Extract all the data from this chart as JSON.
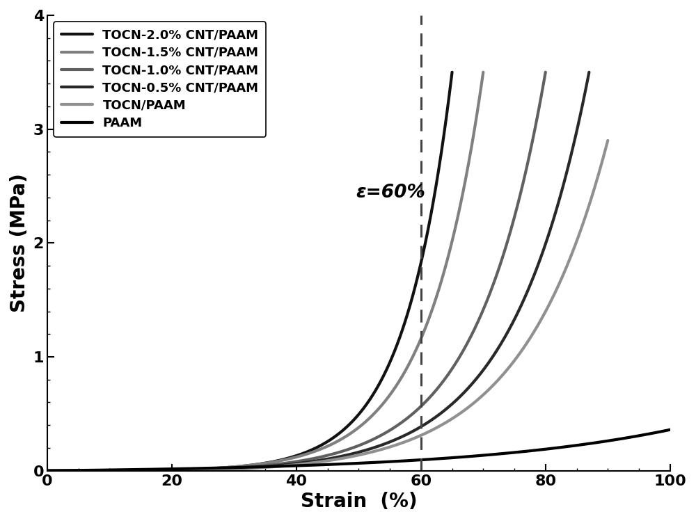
{
  "title": "",
  "xlabel": "Strain  (%)",
  "ylabel": "Stress (MPa)",
  "xlim": [
    0,
    100
  ],
  "ylim": [
    0,
    4
  ],
  "xticks": [
    0,
    20,
    40,
    60,
    80,
    100
  ],
  "yticks": [
    0,
    1,
    2,
    3,
    4
  ],
  "dashed_x": 60,
  "annotation": "ε=60%",
  "series": [
    {
      "label": "TOCN-2.0% CNT/PAAM",
      "color": "#111111",
      "linewidth": 3.0,
      "x_start": 13,
      "x_end": 65,
      "k": 0.13,
      "max_stress": 3.5
    },
    {
      "label": "TOCN-1.5% CNT/PAAM",
      "color": "#808080",
      "linewidth": 3.0,
      "x_start": 16,
      "x_end": 70,
      "k": 0.11,
      "max_stress": 3.5
    },
    {
      "label": "TOCN-1.0% CNT/PAAM",
      "color": "#606060",
      "linewidth": 3.0,
      "x_start": 20,
      "x_end": 80,
      "k": 0.09,
      "max_stress": 3.5
    },
    {
      "label": "TOCN-0.5% CNT/PAAM",
      "color": "#282828",
      "linewidth": 3.0,
      "x_start": 22,
      "x_end": 87,
      "k": 0.08,
      "max_stress": 3.5
    },
    {
      "label": "TOCN/PAAM",
      "color": "#909090",
      "linewidth": 3.0,
      "x_start": 25,
      "x_end": 90,
      "k": 0.072,
      "max_stress": 2.9
    },
    {
      "label": "PAAM",
      "color": "#000000",
      "linewidth": 3.0,
      "x_start": 0,
      "x_end": 100,
      "k": 0.03,
      "max_stress": 0.36
    }
  ],
  "background_color": "#ffffff",
  "tick_fontsize": 16,
  "label_fontsize": 20,
  "legend_fontsize": 13
}
